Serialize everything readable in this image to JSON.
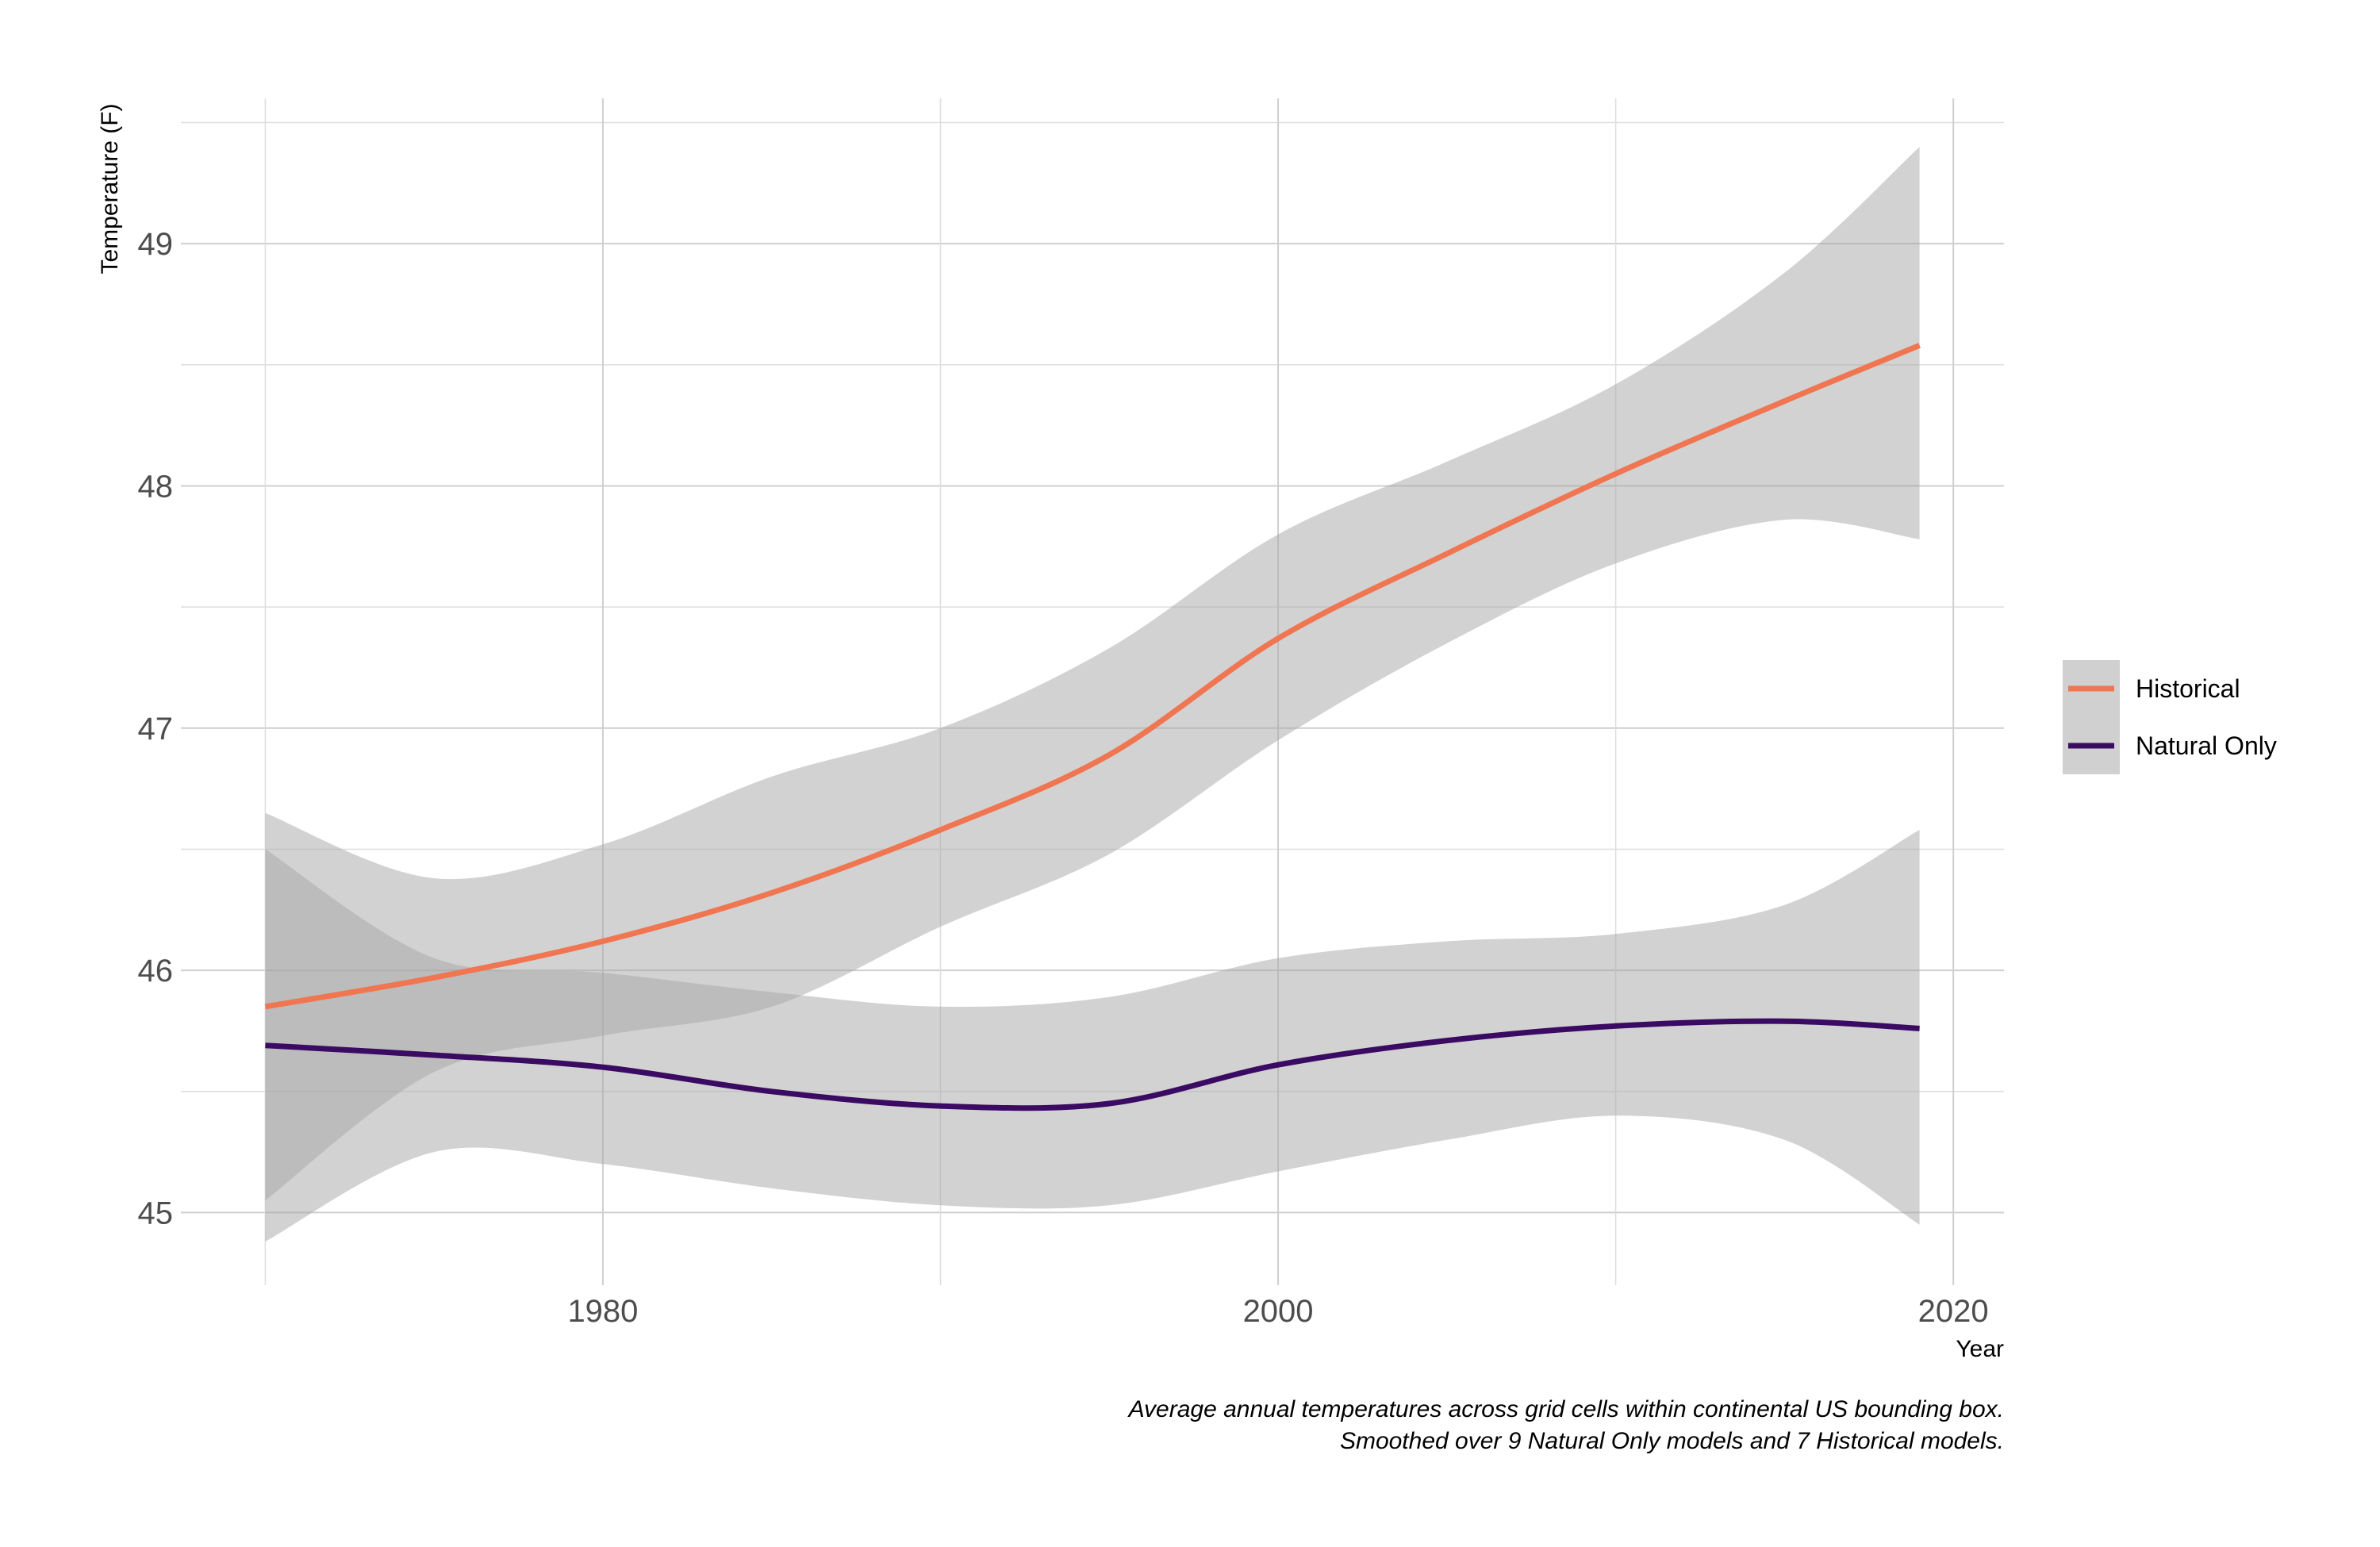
{
  "chart_data": {
    "type": "line",
    "title": "",
    "xlabel": "Year",
    "ylabel": "Temperature (F)",
    "xlim": [
      1967.5,
      2021.5
    ],
    "ylim": [
      44.7,
      49.6
    ],
    "x_ticks": [
      1980,
      2000,
      2020
    ],
    "y_ticks": [
      45,
      46,
      47,
      48,
      49
    ],
    "grid": true,
    "legend_position": "right",
    "caption": [
      "Average annual temperatures across grid cells within continental US bounding box.",
      "Smoothed over 9 Natural Only models and 7 Historical models."
    ],
    "x": [
      1970,
      1975,
      1980,
      1985,
      1990,
      1995,
      2000,
      2005,
      2010,
      2015,
      2019
    ],
    "series": [
      {
        "name": "Historical",
        "color": "#f07652",
        "values": [
          45.85,
          45.97,
          46.12,
          46.32,
          46.58,
          46.89,
          47.37,
          47.72,
          48.05,
          48.35,
          48.58
        ],
        "ci_lower": [
          45.05,
          45.58,
          45.73,
          45.85,
          46.18,
          46.48,
          46.95,
          47.35,
          47.68,
          47.86,
          47.78
        ],
        "ci_upper": [
          46.65,
          46.38,
          46.52,
          46.8,
          47.0,
          47.33,
          47.8,
          48.1,
          48.42,
          48.88,
          49.4
        ]
      },
      {
        "name": "Natural Only",
        "color": "#3b0b63",
        "values": [
          45.69,
          45.65,
          45.6,
          45.5,
          45.44,
          45.45,
          45.61,
          45.71,
          45.77,
          45.79,
          45.76
        ],
        "ci_lower": [
          44.88,
          45.25,
          45.2,
          45.1,
          45.03,
          45.03,
          45.17,
          45.3,
          45.4,
          45.3,
          44.95
        ],
        "ci_upper": [
          46.5,
          46.05,
          45.99,
          45.91,
          45.85,
          45.89,
          46.05,
          46.12,
          46.15,
          46.27,
          46.58
        ]
      }
    ],
    "ribbon_color": "#a6a6a6"
  }
}
